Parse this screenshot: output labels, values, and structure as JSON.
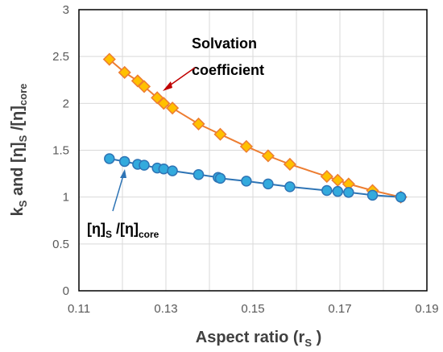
{
  "chart_data": {
    "type": "scatter",
    "xlabel": {
      "text": "Aspect ratio (r",
      "sub": "S",
      "tail": " )"
    },
    "ylabel": {
      "k": "k",
      "k_sub": "S",
      "mid": " and [η]",
      "mid_sub": "S",
      "slash": " /[η]",
      "end_sub": "core"
    },
    "xlim": [
      0.11,
      0.19
    ],
    "ylim": [
      0,
      3
    ],
    "x_ticks": [
      "0.11",
      "0.13",
      "0.15",
      "0.17",
      "0.19"
    ],
    "y_ticks": [
      "0",
      "0.5",
      "1",
      "1.5",
      "2",
      "2.5",
      "3"
    ],
    "grid": true,
    "series": [
      {
        "name": "Solvation coefficient",
        "marker": "diamond",
        "color": "#ffc000",
        "edge": "#ed7d31",
        "line": "#ed7d31",
        "x": [
          0.117,
          0.1205,
          0.1235,
          0.125,
          0.128,
          0.1295,
          0.1315,
          0.1375,
          0.1425,
          0.1485,
          0.1535,
          0.1585,
          0.167,
          0.1695,
          0.172,
          0.1775,
          0.184
        ],
        "y": [
          2.47,
          2.33,
          2.24,
          2.18,
          2.06,
          2.0,
          1.95,
          1.78,
          1.67,
          1.54,
          1.44,
          1.35,
          1.22,
          1.18,
          1.14,
          1.07,
          1.0
        ]
      },
      {
        "name": "[η]S/[η]core",
        "marker": "circle",
        "color": "#33aadd",
        "edge": "#2e74b5",
        "line": "#2e74b5",
        "x": [
          0.117,
          0.1205,
          0.1235,
          0.125,
          0.128,
          0.1295,
          0.1315,
          0.1375,
          0.142,
          0.1425,
          0.1485,
          0.1535,
          0.1585,
          0.167,
          0.1695,
          0.172,
          0.1775,
          0.184
        ],
        "y": [
          1.41,
          1.38,
          1.35,
          1.34,
          1.31,
          1.3,
          1.28,
          1.24,
          1.21,
          1.2,
          1.17,
          1.14,
          1.11,
          1.07,
          1.06,
          1.05,
          1.02,
          1.0
        ]
      }
    ],
    "annotations": [
      {
        "text_line1": "Solvation",
        "text_line2": "coefficient",
        "arrow_color": "#c00000"
      },
      {
        "base": "[η]",
        "sub1": "S",
        "mid": " /[η]",
        "sub2": "core",
        "arrow_color": "#2e74b5"
      }
    ]
  }
}
